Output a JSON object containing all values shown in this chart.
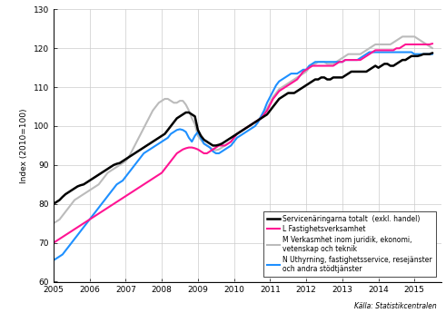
{
  "title": "",
  "ylabel": "Index (2010=100)",
  "xlabel": "",
  "source": "Källa: Statistikcentralen",
  "ylim": [
    60,
    130
  ],
  "yticks": [
    60,
    70,
    80,
    90,
    100,
    110,
    120,
    130
  ],
  "xlim": [
    2005.0,
    2015.75
  ],
  "xticks": [
    2005,
    2006,
    2007,
    2008,
    2009,
    2010,
    2011,
    2012,
    2013,
    2014,
    2015
  ],
  "colors": {
    "black": "#000000",
    "magenta": "#FF1493",
    "gray": "#BBBBBB",
    "blue": "#1E90FF"
  },
  "legend": [
    {
      "label": "Servicenäringarna totalt  (exkl. handel)",
      "color": "#000000",
      "lw": 1.8
    },
    {
      "label": "L Fastighetsverksamhet",
      "color": "#FF1493",
      "lw": 1.5
    },
    {
      "label": "M Verkasmhet inom juridik, ekonomi,\nvetenskap och teknik",
      "color": "#BBBBBB",
      "lw": 1.5
    },
    {
      "label": "N Uthyrning, fastighetsservice, resejänster\noch andra stödtjänster",
      "color": "#1E90FF",
      "lw": 1.5
    }
  ],
  "series": {
    "black": {
      "x": [
        2005.0,
        2005.083,
        2005.167,
        2005.25,
        2005.333,
        2005.417,
        2005.5,
        2005.583,
        2005.667,
        2005.75,
        2005.833,
        2005.917,
        2006.0,
        2006.083,
        2006.167,
        2006.25,
        2006.333,
        2006.417,
        2006.5,
        2006.583,
        2006.667,
        2006.75,
        2006.833,
        2006.917,
        2007.0,
        2007.083,
        2007.167,
        2007.25,
        2007.333,
        2007.417,
        2007.5,
        2007.583,
        2007.667,
        2007.75,
        2007.833,
        2007.917,
        2008.0,
        2008.083,
        2008.167,
        2008.25,
        2008.333,
        2008.417,
        2008.5,
        2008.583,
        2008.667,
        2008.75,
        2008.833,
        2008.917,
        2009.0,
        2009.083,
        2009.167,
        2009.25,
        2009.333,
        2009.417,
        2009.5,
        2009.583,
        2009.667,
        2009.75,
        2009.833,
        2009.917,
        2010.0,
        2010.083,
        2010.167,
        2010.25,
        2010.333,
        2010.417,
        2010.5,
        2010.583,
        2010.667,
        2010.75,
        2010.833,
        2010.917,
        2011.0,
        2011.083,
        2011.167,
        2011.25,
        2011.333,
        2011.417,
        2011.5,
        2011.583,
        2011.667,
        2011.75,
        2011.833,
        2011.917,
        2012.0,
        2012.083,
        2012.167,
        2012.25,
        2012.333,
        2012.417,
        2012.5,
        2012.583,
        2012.667,
        2012.75,
        2012.833,
        2012.917,
        2013.0,
        2013.083,
        2013.167,
        2013.25,
        2013.333,
        2013.417,
        2013.5,
        2013.583,
        2013.667,
        2013.75,
        2013.833,
        2013.917,
        2014.0,
        2014.083,
        2014.167,
        2014.25,
        2014.333,
        2014.417,
        2014.5,
        2014.583,
        2014.667,
        2014.75,
        2014.833,
        2014.917,
        2015.0,
        2015.083,
        2015.167,
        2015.25,
        2015.333,
        2015.417,
        2015.5
      ],
      "y": [
        80.0,
        80.5,
        81.0,
        81.8,
        82.5,
        83.0,
        83.5,
        84.0,
        84.5,
        84.8,
        85.0,
        85.5,
        86.0,
        86.5,
        87.0,
        87.5,
        88.0,
        88.5,
        89.0,
        89.5,
        90.0,
        90.3,
        90.5,
        91.0,
        91.5,
        92.0,
        92.5,
        93.0,
        93.5,
        94.0,
        94.5,
        95.0,
        95.5,
        96.0,
        96.5,
        97.0,
        97.5,
        98.0,
        99.0,
        100.0,
        101.0,
        102.0,
        102.5,
        103.0,
        103.5,
        103.5,
        103.0,
        102.5,
        99.0,
        97.5,
        96.5,
        96.0,
        95.5,
        95.0,
        95.0,
        95.2,
        95.5,
        96.0,
        96.5,
        97.0,
        97.5,
        98.0,
        98.5,
        99.0,
        99.5,
        100.0,
        100.5,
        101.0,
        101.5,
        102.0,
        102.5,
        103.0,
        104.0,
        105.0,
        106.0,
        107.0,
        107.5,
        108.0,
        108.5,
        108.5,
        108.5,
        109.0,
        109.5,
        110.0,
        110.5,
        111.0,
        111.5,
        112.0,
        112.0,
        112.5,
        112.5,
        112.0,
        112.0,
        112.5,
        112.5,
        112.5,
        112.5,
        113.0,
        113.5,
        114.0,
        114.0,
        114.0,
        114.0,
        114.0,
        114.0,
        114.5,
        115.0,
        115.5,
        115.0,
        115.5,
        116.0,
        116.0,
        115.5,
        115.5,
        116.0,
        116.5,
        117.0,
        117.0,
        117.5,
        118.0,
        118.0,
        118.0,
        118.2,
        118.5,
        118.5,
        118.5,
        118.8
      ]
    },
    "magenta": {
      "x": [
        2005.0,
        2005.083,
        2005.167,
        2005.25,
        2005.333,
        2005.417,
        2005.5,
        2005.583,
        2005.667,
        2005.75,
        2005.833,
        2005.917,
        2006.0,
        2006.083,
        2006.167,
        2006.25,
        2006.333,
        2006.417,
        2006.5,
        2006.583,
        2006.667,
        2006.75,
        2006.833,
        2006.917,
        2007.0,
        2007.083,
        2007.167,
        2007.25,
        2007.333,
        2007.417,
        2007.5,
        2007.583,
        2007.667,
        2007.75,
        2007.833,
        2007.917,
        2008.0,
        2008.083,
        2008.167,
        2008.25,
        2008.333,
        2008.417,
        2008.5,
        2008.583,
        2008.667,
        2008.75,
        2008.833,
        2008.917,
        2009.0,
        2009.083,
        2009.167,
        2009.25,
        2009.333,
        2009.417,
        2009.5,
        2009.583,
        2009.667,
        2009.75,
        2009.833,
        2009.917,
        2010.0,
        2010.083,
        2010.167,
        2010.25,
        2010.333,
        2010.417,
        2010.5,
        2010.583,
        2010.667,
        2010.75,
        2010.833,
        2010.917,
        2011.0,
        2011.083,
        2011.167,
        2011.25,
        2011.333,
        2011.417,
        2011.5,
        2011.583,
        2011.667,
        2011.75,
        2011.833,
        2011.917,
        2012.0,
        2012.083,
        2012.167,
        2012.25,
        2012.333,
        2012.417,
        2012.5,
        2012.583,
        2012.667,
        2012.75,
        2012.833,
        2012.917,
        2013.0,
        2013.083,
        2013.167,
        2013.25,
        2013.333,
        2013.417,
        2013.5,
        2013.583,
        2013.667,
        2013.75,
        2013.833,
        2013.917,
        2014.0,
        2014.083,
        2014.167,
        2014.25,
        2014.333,
        2014.417,
        2014.5,
        2014.583,
        2014.667,
        2014.75,
        2014.833,
        2014.917,
        2015.0,
        2015.083,
        2015.167,
        2015.25,
        2015.333,
        2015.417,
        2015.5
      ],
      "y": [
        70.0,
        70.5,
        71.0,
        71.5,
        72.0,
        72.5,
        73.0,
        73.5,
        74.0,
        74.5,
        75.0,
        75.5,
        76.0,
        76.5,
        77.0,
        77.5,
        78.0,
        78.5,
        79.0,
        79.5,
        80.0,
        80.5,
        81.0,
        81.5,
        82.0,
        82.5,
        83.0,
        83.5,
        84.0,
        84.5,
        85.0,
        85.5,
        86.0,
        86.5,
        87.0,
        87.5,
        88.0,
        89.0,
        90.0,
        91.0,
        92.0,
        93.0,
        93.5,
        94.0,
        94.3,
        94.5,
        94.5,
        94.3,
        94.0,
        93.5,
        93.0,
        93.0,
        93.5,
        94.0,
        94.5,
        95.0,
        95.0,
        95.0,
        95.5,
        96.0,
        97.0,
        98.0,
        98.5,
        99.0,
        99.5,
        100.0,
        100.5,
        101.0,
        101.5,
        102.0,
        103.0,
        104.0,
        105.5,
        107.0,
        108.0,
        109.0,
        109.5,
        110.0,
        110.5,
        111.0,
        111.5,
        112.0,
        113.0,
        114.0,
        114.5,
        115.0,
        115.5,
        115.5,
        115.5,
        115.5,
        115.5,
        115.5,
        115.5,
        115.5,
        116.0,
        116.5,
        116.5,
        117.0,
        117.0,
        117.0,
        117.0,
        117.0,
        117.0,
        117.5,
        118.0,
        118.5,
        119.0,
        119.5,
        119.5,
        119.5,
        119.5,
        119.5,
        119.5,
        119.5,
        120.0,
        120.0,
        120.5,
        121.0,
        121.0,
        121.0,
        121.0,
        121.0,
        121.0,
        121.0,
        121.0,
        121.0,
        121.2
      ]
    },
    "gray": {
      "x": [
        2005.0,
        2005.083,
        2005.167,
        2005.25,
        2005.333,
        2005.417,
        2005.5,
        2005.583,
        2005.667,
        2005.75,
        2005.833,
        2005.917,
        2006.0,
        2006.083,
        2006.167,
        2006.25,
        2006.333,
        2006.417,
        2006.5,
        2006.583,
        2006.667,
        2006.75,
        2006.833,
        2006.917,
        2007.0,
        2007.083,
        2007.167,
        2007.25,
        2007.333,
        2007.417,
        2007.5,
        2007.583,
        2007.667,
        2007.75,
        2007.833,
        2007.917,
        2008.0,
        2008.083,
        2008.167,
        2008.25,
        2008.333,
        2008.417,
        2008.5,
        2008.583,
        2008.667,
        2008.75,
        2008.833,
        2008.917,
        2009.0,
        2009.083,
        2009.167,
        2009.25,
        2009.333,
        2009.417,
        2009.5,
        2009.583,
        2009.667,
        2009.75,
        2009.833,
        2009.917,
        2010.0,
        2010.083,
        2010.167,
        2010.25,
        2010.333,
        2010.417,
        2010.5,
        2010.583,
        2010.667,
        2010.75,
        2010.833,
        2010.917,
        2011.0,
        2011.083,
        2011.167,
        2011.25,
        2011.333,
        2011.417,
        2011.5,
        2011.583,
        2011.667,
        2011.75,
        2011.833,
        2011.917,
        2012.0,
        2012.083,
        2012.167,
        2012.25,
        2012.333,
        2012.417,
        2012.5,
        2012.583,
        2012.667,
        2012.75,
        2012.833,
        2012.917,
        2013.0,
        2013.083,
        2013.167,
        2013.25,
        2013.333,
        2013.417,
        2013.5,
        2013.583,
        2013.667,
        2013.75,
        2013.833,
        2013.917,
        2014.0,
        2014.083,
        2014.167,
        2014.25,
        2014.333,
        2014.417,
        2014.5,
        2014.583,
        2014.667,
        2014.75,
        2014.833,
        2014.917,
        2015.0,
        2015.083,
        2015.167,
        2015.25,
        2015.333,
        2015.417,
        2015.5
      ],
      "y": [
        75.0,
        75.5,
        76.0,
        77.0,
        78.0,
        79.0,
        80.0,
        81.0,
        81.5,
        82.0,
        82.5,
        83.0,
        83.5,
        84.0,
        84.5,
        85.0,
        86.0,
        87.0,
        88.0,
        88.5,
        89.0,
        89.5,
        90.0,
        90.5,
        91.0,
        92.0,
        93.5,
        95.0,
        96.5,
        98.0,
        99.5,
        101.0,
        102.5,
        104.0,
        105.0,
        106.0,
        106.5,
        107.0,
        107.0,
        106.5,
        106.0,
        106.0,
        106.5,
        106.5,
        105.5,
        104.0,
        102.0,
        100.5,
        97.5,
        96.5,
        95.5,
        95.0,
        94.5,
        94.0,
        93.8,
        94.0,
        94.5,
        95.0,
        95.5,
        96.0,
        97.0,
        98.0,
        98.5,
        99.0,
        99.5,
        100.0,
        100.5,
        101.0,
        101.5,
        102.5,
        103.5,
        104.5,
        106.0,
        107.5,
        108.5,
        109.5,
        110.0,
        110.5,
        111.0,
        111.5,
        112.0,
        112.5,
        113.0,
        113.5,
        114.0,
        115.0,
        115.5,
        116.0,
        116.5,
        116.5,
        116.5,
        116.0,
        116.0,
        116.0,
        116.5,
        117.0,
        117.5,
        118.0,
        118.5,
        118.5,
        118.5,
        118.5,
        118.5,
        119.0,
        119.5,
        120.0,
        120.5,
        121.0,
        121.0,
        121.0,
        121.0,
        121.0,
        121.0,
        121.5,
        122.0,
        122.5,
        123.0,
        123.0,
        123.0,
        123.0,
        123.0,
        122.5,
        122.0,
        121.5,
        121.0,
        120.5,
        120.0
      ]
    },
    "blue": {
      "x": [
        2005.0,
        2005.083,
        2005.167,
        2005.25,
        2005.333,
        2005.417,
        2005.5,
        2005.583,
        2005.667,
        2005.75,
        2005.833,
        2005.917,
        2006.0,
        2006.083,
        2006.167,
        2006.25,
        2006.333,
        2006.417,
        2006.5,
        2006.583,
        2006.667,
        2006.75,
        2006.833,
        2006.917,
        2007.0,
        2007.083,
        2007.167,
        2007.25,
        2007.333,
        2007.417,
        2007.5,
        2007.583,
        2007.667,
        2007.75,
        2007.833,
        2007.917,
        2008.0,
        2008.083,
        2008.167,
        2008.25,
        2008.333,
        2008.417,
        2008.5,
        2008.583,
        2008.667,
        2008.75,
        2008.833,
        2008.917,
        2009.0,
        2009.083,
        2009.167,
        2009.25,
        2009.333,
        2009.417,
        2009.5,
        2009.583,
        2009.667,
        2009.75,
        2009.833,
        2009.917,
        2010.0,
        2010.083,
        2010.167,
        2010.25,
        2010.333,
        2010.417,
        2010.5,
        2010.583,
        2010.667,
        2010.75,
        2010.833,
        2010.917,
        2011.0,
        2011.083,
        2011.167,
        2011.25,
        2011.333,
        2011.417,
        2011.5,
        2011.583,
        2011.667,
        2011.75,
        2011.833,
        2011.917,
        2012.0,
        2012.083,
        2012.167,
        2012.25,
        2012.333,
        2012.417,
        2012.5,
        2012.583,
        2012.667,
        2012.75,
        2012.833,
        2012.917,
        2013.0,
        2013.083,
        2013.167,
        2013.25,
        2013.333,
        2013.417,
        2013.5,
        2013.583,
        2013.667,
        2013.75,
        2013.833,
        2013.917,
        2014.0,
        2014.083,
        2014.167,
        2014.25,
        2014.333,
        2014.417,
        2014.5,
        2014.583,
        2014.667,
        2014.75,
        2014.833,
        2014.917,
        2015.0,
        2015.083,
        2015.167,
        2015.25,
        2015.333,
        2015.417,
        2015.5
      ],
      "y": [
        65.5,
        66.0,
        66.5,
        67.0,
        68.0,
        69.0,
        70.0,
        71.0,
        72.0,
        73.0,
        74.0,
        75.0,
        76.0,
        77.0,
        78.0,
        79.0,
        80.0,
        81.0,
        82.0,
        83.0,
        84.0,
        85.0,
        85.5,
        86.0,
        87.0,
        88.0,
        89.0,
        90.0,
        91.0,
        92.0,
        93.0,
        93.5,
        94.0,
        94.5,
        95.0,
        95.5,
        96.0,
        96.5,
        97.0,
        98.0,
        98.5,
        99.0,
        99.2,
        99.0,
        98.5,
        97.0,
        96.0,
        97.5,
        98.5,
        97.0,
        95.5,
        95.0,
        94.5,
        93.5,
        93.0,
        93.0,
        93.5,
        94.0,
        94.5,
        95.0,
        96.0,
        97.0,
        97.5,
        98.0,
        98.5,
        99.0,
        99.5,
        100.0,
        101.0,
        102.5,
        104.0,
        106.0,
        107.5,
        109.0,
        110.5,
        111.5,
        112.0,
        112.5,
        113.0,
        113.5,
        113.5,
        113.5,
        114.0,
        114.5,
        114.5,
        115.5,
        116.0,
        116.5,
        116.5,
        116.5,
        116.5,
        116.5,
        116.5,
        116.5,
        116.5,
        116.5,
        116.5,
        117.0,
        117.0,
        117.0,
        117.0,
        117.0,
        117.5,
        118.0,
        118.5,
        119.0,
        119.0,
        119.0,
        119.0,
        119.0,
        119.0,
        119.0,
        119.0,
        119.0,
        119.0,
        119.0,
        119.0,
        119.0,
        119.0,
        119.0,
        118.5,
        118.5,
        118.5,
        118.5,
        118.5,
        118.5,
        118.5
      ]
    }
  }
}
